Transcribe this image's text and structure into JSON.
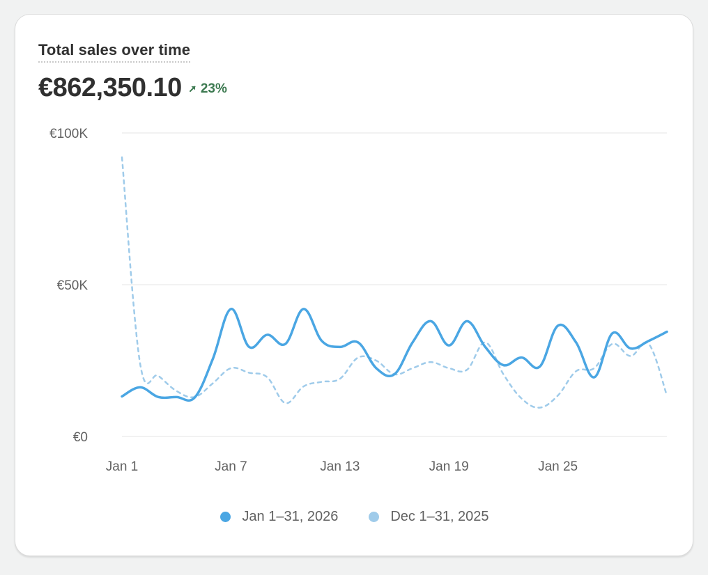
{
  "title": "Total sales over time",
  "total": "€862,350.10",
  "change": "23%",
  "change_icon": "arrow-up-right-icon",
  "colors": {
    "current": "#4aa6e3",
    "previous": "#9fcbea",
    "grid": "#e6e6e6",
    "axis_text": "#616161",
    "positive": "#3d7a51"
  },
  "legend": {
    "current": "Jan 1–31, 2026",
    "previous": "Dec 1–31, 2025"
  },
  "chart_data": {
    "type": "line",
    "title": "Total sales over time",
    "xlabel": "",
    "ylabel": "",
    "x": [
      1,
      2,
      3,
      4,
      5,
      6,
      7,
      8,
      9,
      10,
      11,
      12,
      13,
      14,
      15,
      16,
      17,
      18,
      19,
      20,
      21,
      22,
      23,
      24,
      25,
      26,
      27,
      28,
      29,
      30,
      31
    ],
    "x_ticks": [
      {
        "x": 1,
        "label": "Jan 1"
      },
      {
        "x": 7,
        "label": "Jan 7"
      },
      {
        "x": 13,
        "label": "Jan 13"
      },
      {
        "x": 19,
        "label": "Jan 19"
      },
      {
        "x": 25,
        "label": "Jan 25"
      }
    ],
    "y_ticks": [
      {
        "y": 0,
        "label": "€0"
      },
      {
        "y": 50000,
        "label": "€50K"
      },
      {
        "y": 100000,
        "label": "€100K"
      }
    ],
    "ylim": [
      0,
      100000
    ],
    "grid": true,
    "legend_position": "bottom",
    "series": [
      {
        "name": "Jan 1–31, 2026",
        "style": "solid",
        "values": [
          13200,
          16200,
          13000,
          13000,
          12800,
          25500,
          42000,
          29500,
          33500,
          30500,
          42000,
          31500,
          29500,
          31000,
          22500,
          20500,
          31000,
          38000,
          30000,
          38000,
          29500,
          23500,
          26000,
          23000,
          36500,
          31000,
          19500,
          34000,
          29000,
          31500,
          34500
        ]
      },
      {
        "name": "Dec 1–31, 2025",
        "style": "dashed",
        "values": [
          92000,
          24000,
          20000,
          15000,
          13000,
          17500,
          22500,
          21000,
          19500,
          11000,
          16500,
          18000,
          19000,
          26000,
          25000,
          20500,
          22500,
          24500,
          22500,
          22000,
          31000,
          20500,
          12500,
          9500,
          13500,
          21500,
          22500,
          30500,
          26500,
          30500,
          13500
        ]
      }
    ]
  }
}
